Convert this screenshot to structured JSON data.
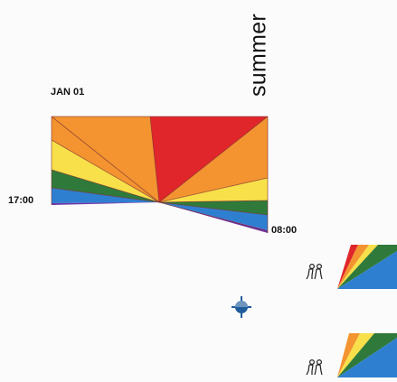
{
  "labels": {
    "season": "summer",
    "date": "JAN 01",
    "time_start": "17:00",
    "time_end": "08:00"
  },
  "colors": {
    "red": "#e0262b",
    "orange": "#f39431",
    "yellow": "#f8e04a",
    "green": "#2f7a3a",
    "blue": "#2f7fd1",
    "purple": "#6d35a8",
    "outline": "#7a2a2a",
    "compass": "#1f5c9c"
  },
  "icons": {
    "compass": "crosshair-compass-icon",
    "people": "people-icon"
  }
}
